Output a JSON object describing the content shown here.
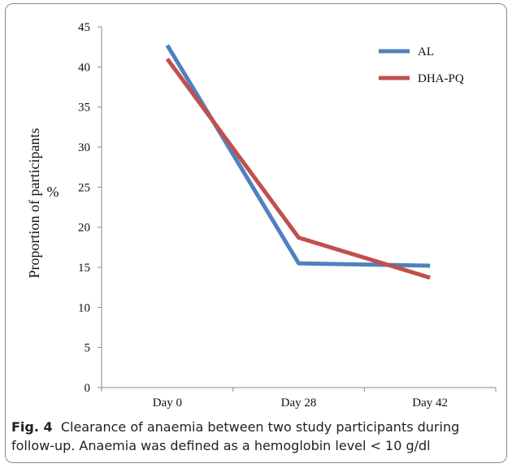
{
  "caption": {
    "label": "Fig. 4",
    "text": "Clearance of anaemia between two study participants during follow-up. Anaemia was defined as a hemoglobin level < 10 g/dl"
  },
  "chart_data": {
    "type": "line",
    "categories": [
      "Day 0",
      "Day 28",
      "Day 42"
    ],
    "series": [
      {
        "name": "AL",
        "color": "#4f81bd",
        "values": [
          42.7,
          15.5,
          15.2
        ]
      },
      {
        "name": "DHA-PQ",
        "color": "#c0504d",
        "values": [
          41.0,
          18.7,
          13.7
        ]
      }
    ],
    "ylabel_line1": "Proportion of participants",
    "ylabel_line2": "%",
    "ylim": [
      0,
      45
    ],
    "yticks": [
      0,
      5,
      10,
      15,
      20,
      25,
      30,
      35,
      40,
      45
    ],
    "grid": false,
    "legend_position": "top-right"
  }
}
